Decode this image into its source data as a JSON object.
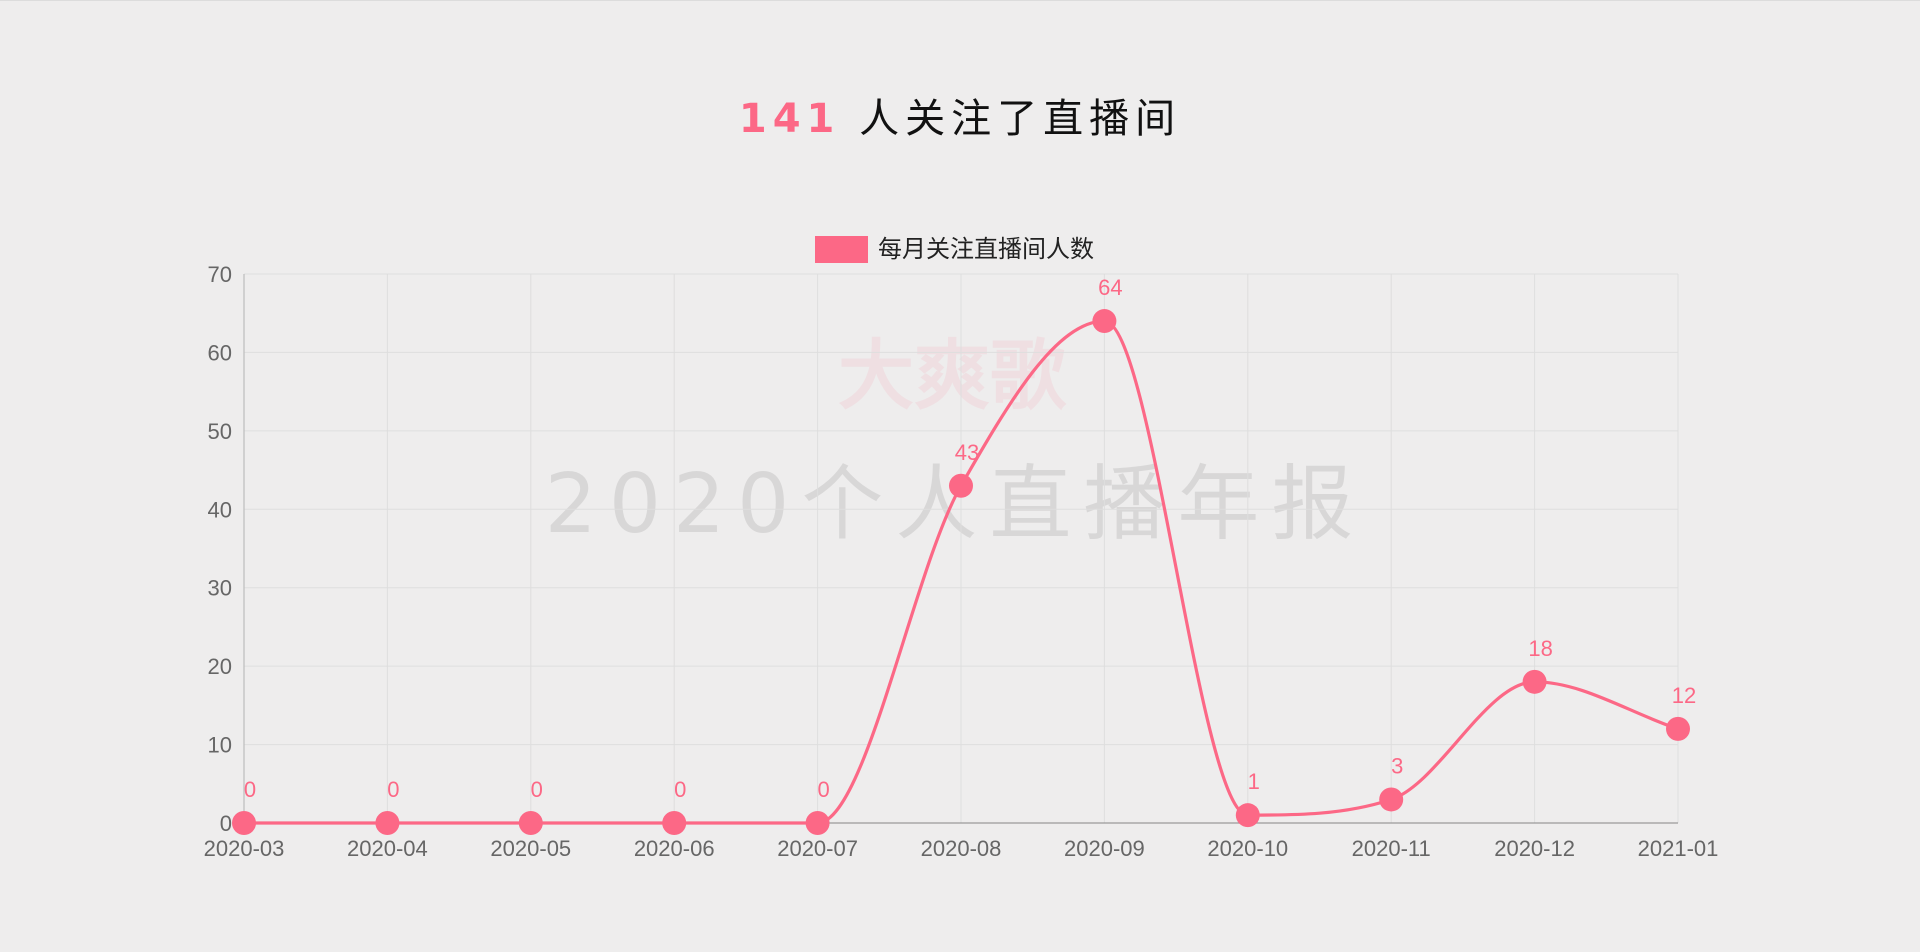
{
  "header": {
    "count": "141",
    "text": "人关注了直播间"
  },
  "watermark": {
    "name": "大爽歌",
    "subtitle": "2020个人直播年报"
  },
  "colors": {
    "accent": "#fc6886",
    "grid": "#dedede",
    "tick_text": "#666666",
    "background": "#eeeded"
  },
  "chart_data": {
    "type": "line",
    "smooth": true,
    "categories": [
      "2020-03",
      "2020-04",
      "2020-05",
      "2020-06",
      "2020-07",
      "2020-08",
      "2020-09",
      "2020-10",
      "2020-11",
      "2020-12",
      "2021-01"
    ],
    "series": [
      {
        "name": "每月关注直播间人数",
        "values": [
          0,
          0,
          0,
          0,
          0,
          43,
          64,
          1,
          3,
          18,
          12
        ]
      }
    ],
    "ylim": [
      0,
      70
    ],
    "yticks": [
      0,
      10,
      20,
      30,
      40,
      50,
      60,
      70
    ],
    "grid": true,
    "legend": "top-center",
    "data_labels": true
  }
}
